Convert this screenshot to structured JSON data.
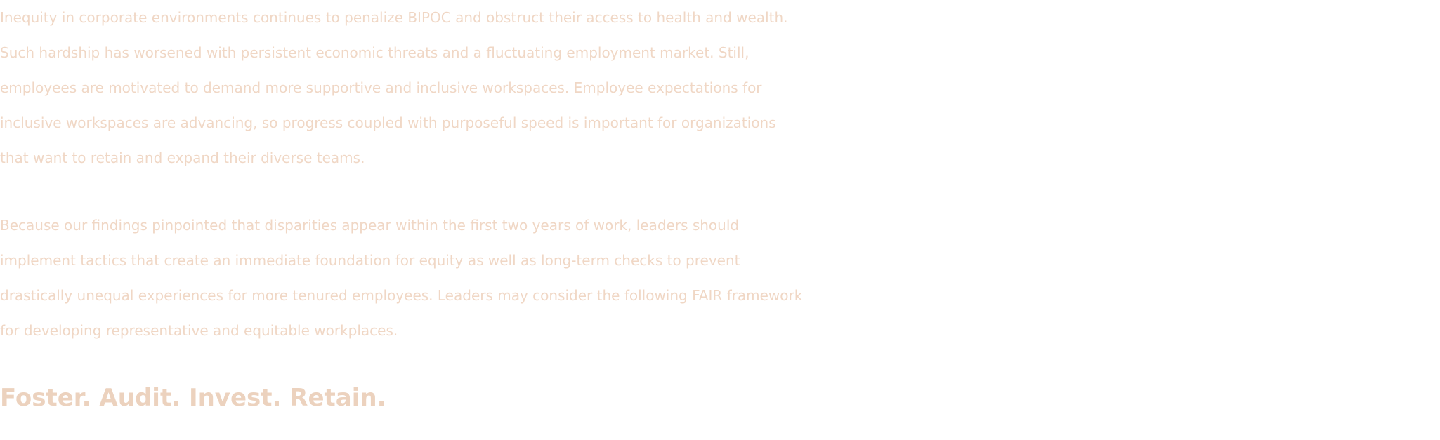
{
  "document": {
    "paragraph_1": [
      "Inequity in corporate environments continues to penalize BIPOC and obstruct their access to health and wealth.",
      "Such hardship has worsened with persistent economic threats and a fluctuating employment market. Still,",
      "employees are motivated to demand more supportive and inclusive workspaces. Employee expectations for",
      "inclusive workspaces are advancing, so progress coupled with purposeful speed is important for organizations",
      "that want to retain and expand their diverse teams."
    ],
    "paragraph_2": [
      "Because our findings pinpointed that disparities appear within the first two years of work, leaders should",
      "implement tactics that create an immediate foundation for equity as well as long-term checks to prevent",
      "drastically unequal experiences for more tenured employees. Leaders may consider the following FAIR framework",
      "for developing representative and equitable workplaces."
    ],
    "tagline": "Foster. Audit. Invest. Retain.",
    "text_color": "#f0d7c5"
  }
}
